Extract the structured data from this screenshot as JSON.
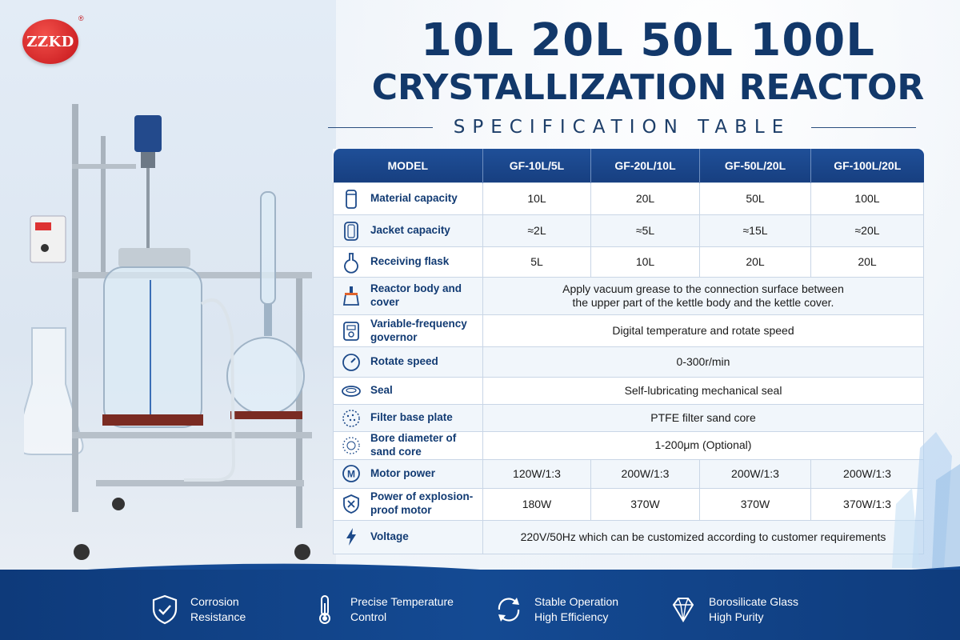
{
  "brand": {
    "logo_text": "ZZKD",
    "registered": "®"
  },
  "header": {
    "title_line1": "10L 20L 50L 100L",
    "title_line2": "CRYSTALLIZATION REACTOR",
    "subtitle": "SPECIFICATION TABLE"
  },
  "table": {
    "headers": [
      "MODEL",
      "GF-10L/5L",
      "GF-20L/10L",
      "GF-50L/20L",
      "GF-100L/20L"
    ],
    "rows": [
      {
        "label": "Material capacity",
        "icon": "beaker-icon",
        "values": [
          "10L",
          "20L",
          "50L",
          "100L"
        ]
      },
      {
        "label": "Jacket capacity",
        "icon": "jacket-icon",
        "values": [
          "≈2L",
          "≈5L",
          "≈15L",
          "≈20L"
        ]
      },
      {
        "label": "Receiving flask",
        "icon": "flask-icon",
        "values": [
          "5L",
          "10L",
          "20L",
          "20L"
        ]
      },
      {
        "label": "Reactor body and cover",
        "icon": "reactor-icon",
        "merged": "Apply vacuum grease to the connection surface between\nthe upper part of the kettle body and the kettle cover."
      },
      {
        "label": "Variable-frequency governor",
        "icon": "controller-icon",
        "merged": "Digital temperature and rotate speed"
      },
      {
        "label": "Rotate speed",
        "icon": "gauge-icon",
        "merged": "0-300r/min"
      },
      {
        "label": "Seal",
        "icon": "seal-icon",
        "merged": "Self-lubricating mechanical seal"
      },
      {
        "label": "Filter base plate",
        "icon": "filter-icon",
        "merged": "PTFE filter sand core"
      },
      {
        "label": "Bore diameter of sand core",
        "icon": "sand-core-icon",
        "merged": "1-200μm (Optional)"
      },
      {
        "label": "Motor power",
        "icon": "motor-icon",
        "values": [
          "120W/1:3",
          "200W/1:3",
          "200W/1:3",
          "200W/1:3"
        ]
      },
      {
        "label": "Power of explosion-\nproof motor",
        "icon": "explosion-proof-icon",
        "values": [
          "180W",
          "370W",
          "370W",
          "370W/1:3"
        ]
      },
      {
        "label": "Voltage",
        "icon": "lightning-icon",
        "merged": "220V/50Hz which can be customized according to customer requirements"
      }
    ]
  },
  "features": [
    {
      "line1": "Corrosion",
      "line2": "Resistance",
      "icon": "shield-check-icon"
    },
    {
      "line1": "Precise Temperature",
      "line2": "Control",
      "icon": "thermometer-icon"
    },
    {
      "line1": "Stable Operation",
      "line2": "High Efficiency",
      "icon": "cycle-arrows-icon"
    },
    {
      "line1": "Borosilicate Glass",
      "line2": "High Purity",
      "icon": "diamond-icon"
    }
  ],
  "colors": {
    "navy": "#12386a",
    "header_blue": "#1f4f98",
    "band_blue": "#144a93",
    "logo_red": "#c4141a"
  }
}
